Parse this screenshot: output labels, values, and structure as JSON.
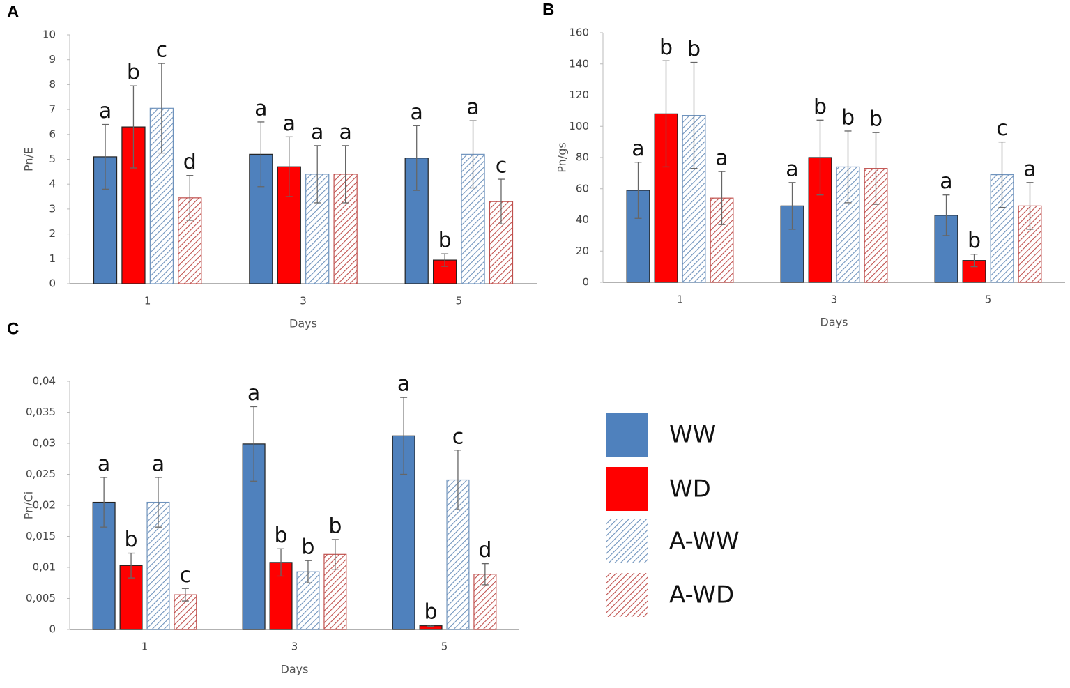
{
  "chart_data": [
    {
      "type": "bar",
      "title": "A",
      "ylabel": "Pn/E",
      "xlabel": "Days",
      "categories": [
        "1",
        "3",
        "5"
      ],
      "ylim": [
        0,
        10
      ],
      "yticks": [
        0,
        1,
        2,
        3,
        4,
        5,
        6,
        7,
        8,
        9,
        10
      ],
      "series": [
        {
          "name": "WW",
          "color": "#4f81bd",
          "hatch": false,
          "values": [
            5.1,
            5.2,
            5.05
          ],
          "errors": [
            1.3,
            1.3,
            1.3
          ],
          "letters": [
            "a",
            "a",
            "a"
          ]
        },
        {
          "name": "WD",
          "color": "#ff0000",
          "hatch": false,
          "values": [
            6.3,
            4.7,
            0.95
          ],
          "errors": [
            1.65,
            1.2,
            0.25
          ],
          "letters": [
            "b",
            "a",
            "b"
          ]
        },
        {
          "name": "A-WW",
          "color": "#6f93bd",
          "hatch": true,
          "values": [
            7.05,
            4.4,
            5.2
          ],
          "errors": [
            1.8,
            1.15,
            1.35
          ],
          "letters": [
            "c",
            "a",
            "a"
          ]
        },
        {
          "name": "A-WD",
          "color": "#c0504d",
          "hatch": true,
          "values": [
            3.45,
            4.4,
            3.3
          ],
          "errors": [
            0.9,
            1.15,
            0.9
          ],
          "letters": [
            "d",
            "a",
            "c"
          ]
        }
      ]
    },
    {
      "type": "bar",
      "title": "B",
      "ylabel": "Pn/gs",
      "xlabel": "Days",
      "categories": [
        "1",
        "3",
        "5"
      ],
      "ylim": [
        0,
        160
      ],
      "yticks": [
        0,
        20,
        40,
        60,
        80,
        100,
        120,
        140,
        160
      ],
      "series": [
        {
          "values": [
            59,
            49,
            43
          ],
          "errors": [
            18,
            15,
            13
          ],
          "letters": [
            "a",
            "a",
            "a"
          ]
        },
        {
          "values": [
            108,
            80,
            14
          ],
          "errors": [
            34,
            24,
            4
          ],
          "letters": [
            "b",
            "b",
            "b"
          ]
        },
        {
          "values": [
            107,
            74,
            69
          ],
          "errors": [
            34,
            23,
            21
          ],
          "letters": [
            "b",
            "b",
            "c"
          ]
        },
        {
          "values": [
            54,
            73,
            49
          ],
          "errors": [
            17,
            23,
            15
          ],
          "letters": [
            "a",
            "b",
            "a"
          ]
        }
      ]
    },
    {
      "type": "bar",
      "title": "C",
      "ylabel": "Pn/Ci",
      "xlabel": "Days",
      "categories": [
        "1",
        "3",
        "5"
      ],
      "ylim": [
        0,
        0.04
      ],
      "yticks": [
        0,
        {
          "value": 0.005,
          "label": "0,005"
        },
        {
          "value": 0.01,
          "label": "0,01"
        },
        {
          "value": 0.015,
          "label": "0,015"
        },
        {
          "value": 0.02,
          "label": "0,02"
        },
        {
          "value": 0.025,
          "label": "0,025"
        },
        {
          "value": 0.03,
          "label": "0,03"
        },
        {
          "value": 0.035,
          "label": "0,035"
        },
        {
          "value": 0.04,
          "label": "0,04"
        }
      ],
      "series": [
        {
          "values": [
            0.0205,
            0.0299,
            0.0312
          ],
          "errors": [
            0.004,
            0.006,
            0.0062
          ],
          "letters": [
            "a",
            "a",
            "a"
          ]
        },
        {
          "values": [
            0.0103,
            0.0108,
            0.0006
          ],
          "errors": [
            0.002,
            0.0022,
            0.0001
          ],
          "letters": [
            "b",
            "b",
            "b"
          ]
        },
        {
          "values": [
            0.0205,
            0.0093,
            0.0241
          ],
          "errors": [
            0.004,
            0.0018,
            0.0048
          ],
          "letters": [
            "a",
            "b",
            "c"
          ]
        },
        {
          "values": [
            0.0056,
            0.0121,
            0.0089
          ],
          "errors": [
            0.001,
            0.0024,
            0.0017
          ],
          "letters": [
            "c",
            "b",
            "d"
          ]
        }
      ]
    }
  ]
}
